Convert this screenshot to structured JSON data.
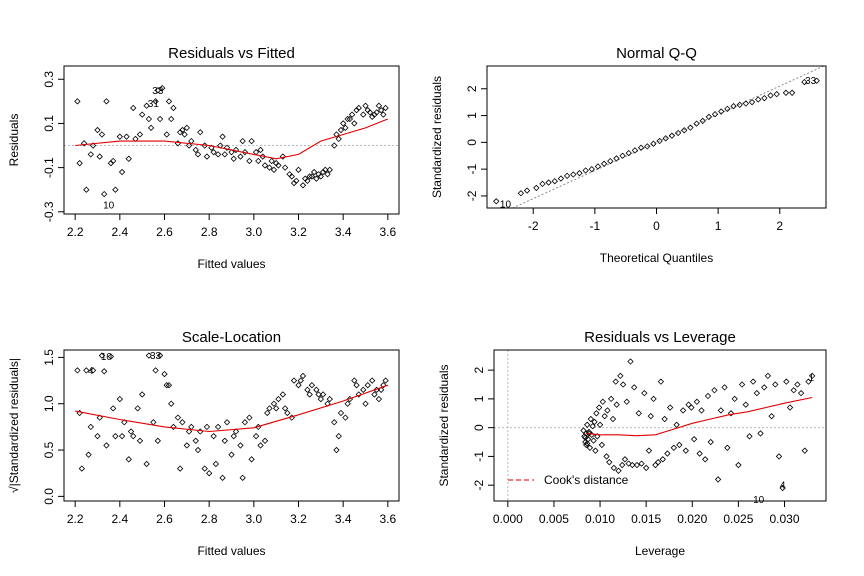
{
  "chart_data": [
    {
      "type": "scatter",
      "title": "Residuals vs Fitted",
      "xlabel": "Fitted values",
      "ylabel": "Residuals",
      "xlim": [
        2.15,
        3.65
      ],
      "ylim": [
        -0.31,
        0.36
      ],
      "xticks": [
        2.2,
        2.4,
        2.6,
        2.8,
        3.0,
        3.2,
        3.4,
        3.6
      ],
      "xtick_labels": [
        "2.2",
        "2.4",
        "2.6",
        "2.8",
        "3.0",
        "3.2",
        "3.4",
        "3.6"
      ],
      "yticks": [
        -0.3,
        -0.1,
        0.1,
        0.3
      ],
      "ytick_labels": [
        "-0.3",
        "-0.1",
        "0.1",
        "0.3"
      ],
      "ytick_rotated": true,
      "reference_line": {
        "y": 0,
        "style": "dotted",
        "color": "#b0b0b0"
      },
      "smooth": {
        "color": "#e00000",
        "x": [
          2.2,
          2.4,
          2.6,
          2.8,
          3.0,
          3.1,
          3.2,
          3.3,
          3.4,
          3.5,
          3.6
        ],
        "y": [
          0.0,
          0.02,
          0.02,
          0.0,
          -0.04,
          -0.06,
          -0.04,
          0.02,
          0.05,
          0.08,
          0.12
        ]
      },
      "annotations": [
        {
          "text": "33",
          "x": 2.57,
          "y": 0.25
        },
        {
          "text": "31",
          "x": 2.55,
          "y": 0.19
        },
        {
          "text": "10",
          "x": 2.35,
          "y": -0.27
        }
      ],
      "points": {
        "x": [
          2.21,
          2.22,
          2.24,
          2.25,
          2.27,
          2.28,
          2.3,
          2.31,
          2.32,
          2.33,
          2.34,
          2.36,
          2.37,
          2.38,
          2.4,
          2.41,
          2.43,
          2.44,
          2.46,
          2.47,
          2.49,
          2.5,
          2.52,
          2.53,
          2.54,
          2.56,
          2.57,
          2.58,
          2.59,
          2.61,
          2.62,
          2.63,
          2.64,
          2.66,
          2.67,
          2.68,
          2.69,
          2.7,
          2.71,
          2.72,
          2.74,
          2.75,
          2.76,
          2.78,
          2.79,
          2.81,
          2.82,
          2.84,
          2.85,
          2.86,
          2.87,
          2.88,
          2.9,
          2.91,
          2.92,
          2.94,
          2.95,
          2.96,
          2.98,
          2.99,
          3.01,
          3.02,
          3.03,
          3.04,
          3.05,
          3.07,
          3.08,
          3.09,
          3.1,
          3.11,
          3.13,
          3.14,
          3.16,
          3.17,
          3.18,
          3.19,
          3.2,
          3.22,
          3.23,
          3.24,
          3.25,
          3.26,
          3.27,
          3.28,
          3.29,
          3.3,
          3.31,
          3.32,
          3.33,
          3.34,
          3.36,
          3.37,
          3.38,
          3.39,
          3.4,
          3.41,
          3.42,
          3.43,
          3.44,
          3.45,
          3.46,
          3.47,
          3.49,
          3.5,
          3.51,
          3.52,
          3.53,
          3.54,
          3.55,
          3.56,
          3.57,
          3.58,
          3.59
        ],
        "y": [
          0.2,
          -0.08,
          0.01,
          -0.2,
          -0.04,
          0.0,
          0.07,
          -0.05,
          0.05,
          -0.22,
          0.2,
          -0.08,
          -0.07,
          -0.2,
          0.04,
          -0.12,
          0.04,
          -0.06,
          0.17,
          0.03,
          0.05,
          0.14,
          0.18,
          0.12,
          0.08,
          0.2,
          0.25,
          0.12,
          0.26,
          0.05,
          0.2,
          0.12,
          0.17,
          0.01,
          0.06,
          0.07,
          0.05,
          0.08,
          0.0,
          0.02,
          -0.02,
          -0.04,
          0.06,
          0.0,
          -0.05,
          -0.01,
          -0.03,
          -0.04,
          0.0,
          0.04,
          -0.04,
          -0.01,
          -0.03,
          -0.06,
          -0.02,
          -0.05,
          0.02,
          -0.03,
          -0.07,
          0.02,
          -0.03,
          -0.07,
          -0.02,
          -0.05,
          -0.09,
          -0.1,
          -0.07,
          -0.11,
          -0.08,
          -0.09,
          -0.05,
          -0.1,
          -0.13,
          -0.14,
          -0.17,
          -0.16,
          -0.11,
          -0.18,
          -0.15,
          -0.16,
          -0.14,
          -0.14,
          -0.12,
          -0.15,
          -0.13,
          -0.14,
          -0.12,
          -0.11,
          -0.13,
          -0.11,
          0.0,
          0.05,
          0.03,
          0.07,
          0.1,
          0.08,
          0.12,
          0.12,
          0.14,
          0.1,
          0.16,
          0.17,
          0.14,
          0.18,
          0.16,
          0.15,
          0.13,
          0.14,
          0.15,
          0.18,
          0.16,
          0.14,
          0.17
        ]
      }
    },
    {
      "type": "scatter",
      "title": "Normal Q-Q",
      "xlabel": "Theoretical Quantiles",
      "ylabel": "Standardized residuals",
      "xlim": [
        -2.75,
        2.75
      ],
      "ylim": [
        -2.45,
        2.85
      ],
      "xticks": [
        -2,
        -1,
        0,
        1,
        2
      ],
      "xtick_labels": [
        "-2",
        "-1",
        "0",
        "1",
        "2"
      ],
      "yticks": [
        -2,
        -1,
        0,
        1,
        2
      ],
      "ytick_labels": [
        "-2",
        "-1",
        "0",
        "1",
        "2"
      ],
      "ytick_rotated": true,
      "reference_line": {
        "type": "qq-diagonal",
        "style": "dotted",
        "color": "#808080",
        "intercept": 0,
        "slope": 1.05
      },
      "annotations": [
        {
          "text": "33",
          "x": 2.5,
          "y": 2.3
        },
        {
          "text": "10",
          "x": -2.45,
          "y": -2.3
        }
      ],
      "points": {
        "x": [
          -2.6,
          -2.2,
          -2.1,
          -1.95,
          -1.85,
          -1.75,
          -1.65,
          -1.55,
          -1.45,
          -1.35,
          -1.25,
          -1.15,
          -1.05,
          -0.95,
          -0.85,
          -0.75,
          -0.65,
          -0.55,
          -0.45,
          -0.35,
          -0.25,
          -0.15,
          -0.05,
          0.05,
          0.15,
          0.25,
          0.35,
          0.45,
          0.55,
          0.65,
          0.75,
          0.85,
          0.95,
          1.05,
          1.15,
          1.25,
          1.35,
          1.45,
          1.55,
          1.65,
          1.75,
          1.85,
          1.95,
          2.1,
          2.2,
          2.4,
          2.6
        ],
        "y": [
          -2.2,
          -1.9,
          -1.8,
          -1.7,
          -1.55,
          -1.5,
          -1.45,
          -1.35,
          -1.25,
          -1.2,
          -1.15,
          -1.05,
          -1.0,
          -0.9,
          -0.8,
          -0.7,
          -0.6,
          -0.5,
          -0.4,
          -0.3,
          -0.2,
          -0.15,
          -0.05,
          0.05,
          0.15,
          0.25,
          0.35,
          0.45,
          0.55,
          0.7,
          0.8,
          0.95,
          1.05,
          1.15,
          1.25,
          1.35,
          1.4,
          1.45,
          1.5,
          1.6,
          1.65,
          1.75,
          1.8,
          1.85,
          1.85,
          2.25,
          2.3
        ]
      }
    },
    {
      "type": "scatter",
      "title": "Scale-Location",
      "xlabel": "Fitted values",
      "ylabel": "√|Standardized residuals|",
      "xlim": [
        2.15,
        3.65
      ],
      "ylim": [
        -0.05,
        1.58
      ],
      "xticks": [
        2.2,
        2.4,
        2.6,
        2.8,
        3.0,
        3.2,
        3.4,
        3.6
      ],
      "xtick_labels": [
        "2.2",
        "2.4",
        "2.6",
        "2.8",
        "3.0",
        "3.2",
        "3.4",
        "3.6"
      ],
      "yticks": [
        0.0,
        0.5,
        1.0,
        1.5
      ],
      "ytick_labels": [
        "0.0",
        "0.5",
        "1.0",
        "1.5"
      ],
      "ytick_rotated": true,
      "smooth": {
        "color": "#e00000",
        "x": [
          2.2,
          2.4,
          2.6,
          2.8,
          3.0,
          3.2,
          3.4,
          3.6
        ],
        "y": [
          0.92,
          0.83,
          0.75,
          0.7,
          0.74,
          0.88,
          1.03,
          1.2
        ]
      },
      "annotations": [
        {
          "text": "4",
          "x": 2.27,
          "y": 1.36
        },
        {
          "text": "10",
          "x": 2.34,
          "y": 1.51
        },
        {
          "text": "33",
          "x": 2.56,
          "y": 1.52
        }
      ],
      "points": {
        "x": [
          2.21,
          2.22,
          2.23,
          2.25,
          2.26,
          2.27,
          2.28,
          2.3,
          2.31,
          2.32,
          2.33,
          2.34,
          2.36,
          2.37,
          2.38,
          2.4,
          2.41,
          2.42,
          2.44,
          2.45,
          2.46,
          2.48,
          2.49,
          2.5,
          2.52,
          2.53,
          2.55,
          2.56,
          2.57,
          2.58,
          2.6,
          2.61,
          2.62,
          2.63,
          2.64,
          2.66,
          2.67,
          2.68,
          2.7,
          2.71,
          2.72,
          2.74,
          2.75,
          2.76,
          2.78,
          2.79,
          2.8,
          2.82,
          2.83,
          2.84,
          2.86,
          2.87,
          2.88,
          2.9,
          2.91,
          2.92,
          2.94,
          2.95,
          2.96,
          2.98,
          2.99,
          3.01,
          3.02,
          3.03,
          3.05,
          3.06,
          3.07,
          3.09,
          3.1,
          3.11,
          3.13,
          3.14,
          3.15,
          3.17,
          3.18,
          3.2,
          3.21,
          3.22,
          3.24,
          3.25,
          3.26,
          3.28,
          3.29,
          3.3,
          3.31,
          3.33,
          3.34,
          3.36,
          3.37,
          3.38,
          3.39,
          3.41,
          3.42,
          3.43,
          3.45,
          3.46,
          3.47,
          3.49,
          3.5,
          3.51,
          3.53,
          3.54,
          3.55,
          3.56,
          3.57,
          3.58,
          3.59
        ],
        "y": [
          1.36,
          0.9,
          0.3,
          1.36,
          0.45,
          0.75,
          1.36,
          0.65,
          0.85,
          1.52,
          1.35,
          0.55,
          1.51,
          0.95,
          0.65,
          1.05,
          0.65,
          0.8,
          0.4,
          0.7,
          0.65,
          0.95,
          0.6,
          1.1,
          0.35,
          1.52,
          0.8,
          1.36,
          0.6,
          1.52,
          1.32,
          1.2,
          1.2,
          1.0,
          0.75,
          0.85,
          0.3,
          0.8,
          0.55,
          0.7,
          0.75,
          0.6,
          0.5,
          0.7,
          0.3,
          0.75,
          0.25,
          0.65,
          0.35,
          0.75,
          0.2,
          0.6,
          0.8,
          0.45,
          0.65,
          0.7,
          0.55,
          0.2,
          0.8,
          0.85,
          0.4,
          0.65,
          0.75,
          0.55,
          0.6,
          0.9,
          0.95,
          1.0,
          0.95,
          1.05,
          1.1,
          0.95,
          0.9,
          0.85,
          1.25,
          1.2,
          1.25,
          1.3,
          1.15,
          1.1,
          1.2,
          1.15,
          1.1,
          1.05,
          1.1,
          1.0,
          1.05,
          0.8,
          0.5,
          0.65,
          0.9,
          0.85,
          1.0,
          1.05,
          1.25,
          1.2,
          1.1,
          1.15,
          1.0,
          1.2,
          1.25,
          1.1,
          1.15,
          1.05,
          1.15,
          1.2,
          1.25
        ]
      }
    },
    {
      "type": "scatter",
      "title": "Residuals vs Leverage",
      "xlabel": "Leverage",
      "ylabel": "Standardized residuals",
      "xlim": [
        -0.0015,
        0.0345
      ],
      "ylim": [
        -2.55,
        2.7
      ],
      "xticks": [
        0.0,
        0.005,
        0.01,
        0.015,
        0.02,
        0.025,
        0.03
      ],
      "xtick_labels": [
        "0.000",
        "0.005",
        "0.010",
        "0.015",
        "0.020",
        "0.025",
        "0.030"
      ],
      "yticks": [
        -2,
        -1,
        0,
        1,
        2
      ],
      "ytick_labels": [
        "-2",
        "-1",
        "0",
        "1",
        "2"
      ],
      "ytick_rotated": true,
      "reference_lines": [
        {
          "y": 0,
          "style": "dotted",
          "color": "#b0b0b0"
        },
        {
          "x": 0,
          "style": "dotted",
          "color": "#b0b0b0"
        }
      ],
      "smooth": {
        "color": "#e00000",
        "x": [
          0.0085,
          0.01,
          0.012,
          0.014,
          0.016,
          0.018,
          0.02,
          0.022,
          0.024,
          0.026,
          0.028,
          0.03,
          0.033
        ],
        "y": [
          -0.2,
          -0.25,
          -0.25,
          -0.28,
          -0.25,
          -0.05,
          0.15,
          0.3,
          0.45,
          0.55,
          0.7,
          0.85,
          1.05
        ]
      },
      "legend": {
        "label": "Cook's distance",
        "position": "bottom-left",
        "style": "dashed",
        "color": "#e00000"
      },
      "annotations": [
        {
          "text": "1",
          "x": 0.0329,
          "y": 1.75
        },
        {
          "text": "4",
          "x": 0.0298,
          "y": -2.0
        },
        {
          "text": "10",
          "x": 0.0272,
          "y": -2.5
        }
      ],
      "points": {
        "x": [
          0.0082,
          0.0083,
          0.0084,
          0.0085,
          0.0085,
          0.0086,
          0.0087,
          0.0088,
          0.0089,
          0.009,
          0.0091,
          0.0092,
          0.0084,
          0.0086,
          0.0088,
          0.0093,
          0.0094,
          0.0095,
          0.0096,
          0.0097,
          0.0099,
          0.01,
          0.0102,
          0.0103,
          0.0105,
          0.0107,
          0.0108,
          0.011,
          0.0112,
          0.0114,
          0.0115,
          0.0117,
          0.0118,
          0.012,
          0.0122,
          0.0124,
          0.0125,
          0.0127,
          0.0129,
          0.0131,
          0.0133,
          0.0135,
          0.0137,
          0.014,
          0.0142,
          0.0145,
          0.0148,
          0.015,
          0.0153,
          0.0155,
          0.0158,
          0.016,
          0.0163,
          0.0166,
          0.0168,
          0.017,
          0.0173,
          0.0176,
          0.018,
          0.0183,
          0.0186,
          0.019,
          0.0193,
          0.0196,
          0.0199,
          0.0202,
          0.0205,
          0.0208,
          0.021,
          0.0214,
          0.0217,
          0.022,
          0.0224,
          0.0228,
          0.0231,
          0.0235,
          0.0238,
          0.0242,
          0.0246,
          0.025,
          0.0254,
          0.0258,
          0.0262,
          0.0266,
          0.027,
          0.0274,
          0.0278,
          0.0282,
          0.0286,
          0.029,
          0.0294,
          0.0298,
          0.0302,
          0.0306,
          0.031,
          0.0314,
          0.0318,
          0.0322,
          0.0326,
          0.033
        ],
        "y": [
          -0.1,
          -0.3,
          -0.5,
          -0.2,
          -0.6,
          0.1,
          -0.4,
          -0.15,
          -0.7,
          0.3,
          -0.25,
          0.05,
          -0.35,
          -0.55,
          -0.2,
          -0.45,
          0.2,
          -0.8,
          0.5,
          -0.3,
          0.7,
          0.1,
          -0.6,
          0.9,
          0.4,
          -1.0,
          0.6,
          -1.2,
          1.0,
          0.3,
          -1.4,
          1.6,
          0.8,
          -1.5,
          1.8,
          -1.3,
          1.5,
          -1.1,
          0.9,
          -1.25,
          2.3,
          -1.3,
          1.4,
          -1.3,
          0.5,
          -1.25,
          1.2,
          -1.4,
          -0.8,
          0.4,
          1.0,
          -1.3,
          -1.2,
          1.6,
          -1.1,
          0.3,
          -0.9,
          0.7,
          -0.7,
          0.1,
          -0.6,
          0.6,
          -0.8,
          0.8,
          0.7,
          -0.4,
          0.9,
          -0.9,
          0.6,
          -1.1,
          1.1,
          -0.5,
          1.3,
          -1.8,
          0.6,
          1.4,
          -0.7,
          0.5,
          1.0,
          -1.3,
          1.5,
          0.8,
          -0.3,
          1.6,
          1.2,
          -0.2,
          1.4,
          1.8,
          0.4,
          1.5,
          -1.0,
          -2.1,
          1.6,
          0.7,
          1.3,
          1.5,
          1.2,
          -0.8,
          1.6,
          1.8
        ]
      }
    }
  ]
}
